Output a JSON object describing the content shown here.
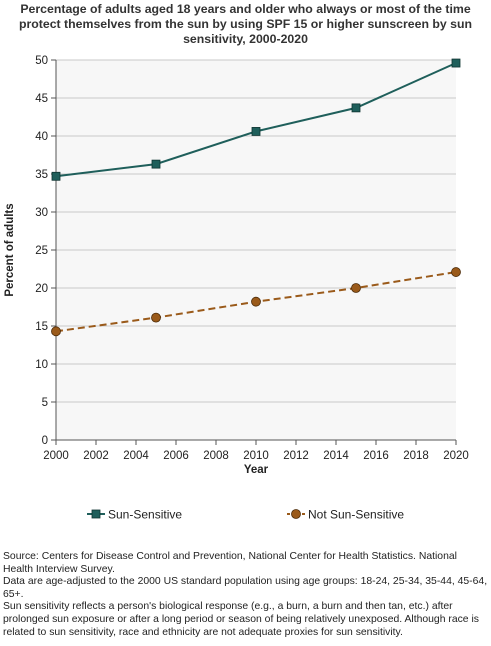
{
  "chart_data": {
    "type": "line",
    "title": "Percentage of adults aged 18 years and older who always or most of the time protect themselves from the sun by using SPF 15 or higher sunscreen by sun sensitivity, 2000-2020",
    "xlabel": "Year",
    "ylabel": "Percent of adults",
    "xlim": [
      2000,
      2020
    ],
    "ylim": [
      0,
      50
    ],
    "xticks": [
      2000,
      2002,
      2004,
      2006,
      2008,
      2010,
      2012,
      2014,
      2016,
      2018,
      2020
    ],
    "yticks": [
      0,
      5,
      10,
      15,
      20,
      25,
      30,
      35,
      40,
      45,
      50
    ],
    "grid": "horizontal",
    "legend": "bottom",
    "series": [
      {
        "name": "Sun-Sensitive",
        "color": "#1f5f5b",
        "line_style": "solid",
        "marker": "square",
        "x": [
          2000,
          2005,
          2010,
          2015,
          2020
        ],
        "y": [
          34.7,
          36.3,
          40.6,
          43.7,
          49.6
        ]
      },
      {
        "name": "Not Sun-Sensitive",
        "color": "#9a5a1a",
        "line_style": "dashed",
        "marker": "circle",
        "x": [
          2000,
          2005,
          2010,
          2015,
          2020
        ],
        "y": [
          14.3,
          16.1,
          18.2,
          20.0,
          22.1
        ]
      }
    ]
  },
  "notes": [
    "Source: Centers for Disease Control and Prevention, National Center for Health Statistics. National Health Interview Survey.",
    "Data are age-adjusted to the 2000 US standard population using age groups: 18-24, 25-34, 35-44, 45-64, 65+.",
    "Sun sensitivity reflects a person's biological response (e.g., a burn, a burn and then tan, etc.) after prolonged sun exposure or after a long period or season of being relatively unexposed. Although race is related to sun sensitivity, race and ethnicity are not adequate proxies for sun sensitivity."
  ]
}
